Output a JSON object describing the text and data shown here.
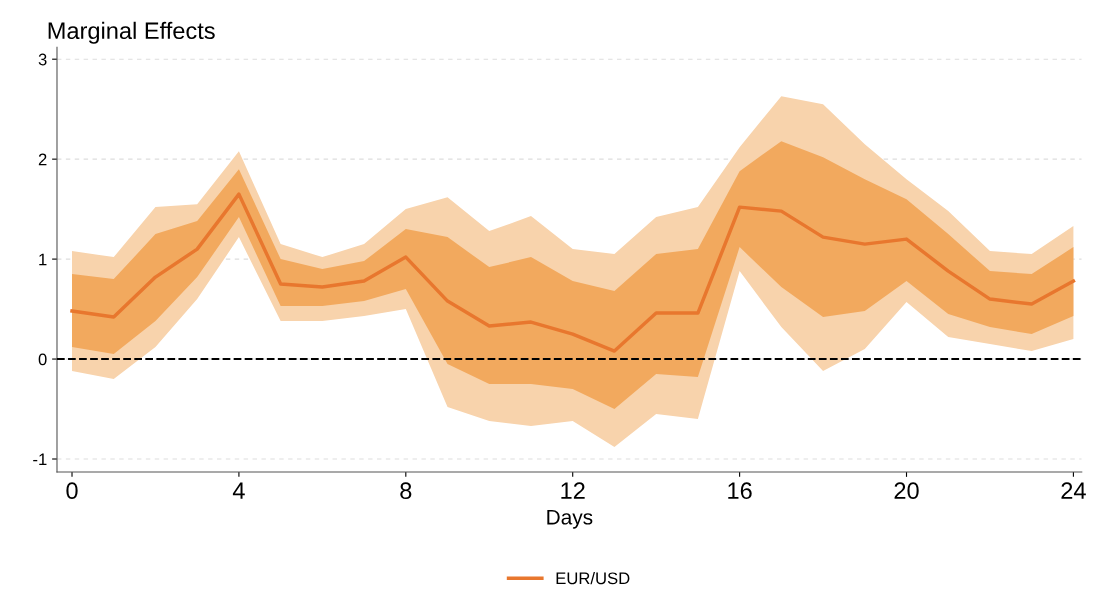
{
  "chart_data": {
    "type": "line",
    "title": "Marginal Effects",
    "xlabel": "Days",
    "x": [
      0,
      1,
      2,
      3,
      4,
      5,
      6,
      7,
      8,
      9,
      10,
      11,
      12,
      13,
      14,
      15,
      16,
      17,
      18,
      19,
      20,
      21,
      22,
      23,
      24
    ],
    "series": [
      {
        "values": [
          null,
          null,
          null,
          null,
          null,
          null,
          null,
          null,
          null,
          null,
          null,
          null,
          null,
          null,
          null,
          null,
          null,
          null,
          null,
          null,
          null,
          null,
          null,
          null,
          null
        ],
        "color": "#f8d3ac",
        "lower": [
          -0.12,
          -0.2,
          0.12,
          0.6,
          1.22,
          0.38,
          0.38,
          0.43,
          0.5,
          -0.48,
          -0.62,
          -0.67,
          -0.62,
          -0.88,
          -0.55,
          -0.6,
          0.88,
          0.32,
          -0.12,
          0.1,
          0.57,
          0.22,
          0.15,
          0.08,
          0.2
        ],
        "upper": [
          1.08,
          1.02,
          1.52,
          1.55,
          2.08,
          1.15,
          1.02,
          1.15,
          1.5,
          1.62,
          1.28,
          1.43,
          1.1,
          1.05,
          1.42,
          1.52,
          2.12,
          2.63,
          2.55,
          2.15,
          1.8,
          1.48,
          1.08,
          1.05,
          1.33
        ]
      },
      {
        "values": [
          null,
          null,
          null,
          null,
          null,
          null,
          null,
          null,
          null,
          null,
          null,
          null,
          null,
          null,
          null,
          null,
          null,
          null,
          null,
          null,
          null,
          null,
          null,
          null,
          null
        ],
        "color": "#f2a95e",
        "lower": [
          0.12,
          0.05,
          0.38,
          0.82,
          1.42,
          0.53,
          0.53,
          0.58,
          0.7,
          -0.05,
          -0.25,
          -0.25,
          -0.3,
          -0.5,
          -0.15,
          -0.18,
          1.12,
          0.72,
          0.42,
          0.48,
          0.78,
          0.45,
          0.32,
          0.25,
          0.43
        ],
        "upper": [
          0.85,
          0.8,
          1.25,
          1.38,
          1.9,
          1.0,
          0.9,
          0.98,
          1.3,
          1.22,
          0.92,
          1.02,
          0.78,
          0.68,
          1.05,
          1.1,
          1.88,
          2.18,
          2.02,
          1.8,
          1.6,
          1.25,
          0.88,
          0.85,
          1.12
        ]
      },
      {
        "name": "EUR/USD",
        "color": "#e8772e",
        "values": [
          0.48,
          0.42,
          0.82,
          1.1,
          1.65,
          0.75,
          0.72,
          0.78,
          1.02,
          0.58,
          0.33,
          0.37,
          0.25,
          0.08,
          0.46,
          0.46,
          1.52,
          1.48,
          1.22,
          1.15,
          1.2,
          0.88,
          0.6,
          0.55,
          0.78
        ]
      }
    ],
    "xlim": [
      -0.36,
      24.2
    ],
    "ylim": [
      -1.13,
      3.12
    ],
    "xticks": [
      0,
      4,
      8,
      12,
      16,
      20,
      24
    ],
    "yticks": [
      -1,
      0,
      1,
      2,
      3
    ],
    "grid": "y",
    "legend": "bottom",
    "line_style": "solid",
    "marker": "none",
    "ref_lines": [
      {
        "axis": "y",
        "value": 0,
        "color": "#000000",
        "line_style": "dashed"
      }
    ]
  }
}
